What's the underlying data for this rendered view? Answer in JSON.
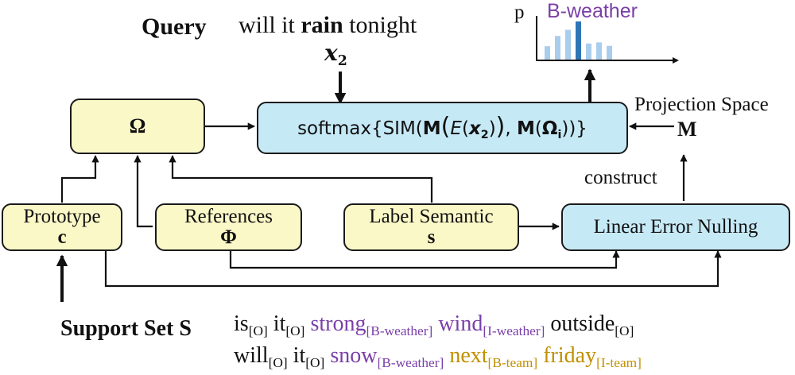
{
  "query": {
    "label": "Query",
    "sentence": {
      "pre": "will it ",
      "bold": "rain",
      "post": " tonight"
    },
    "var": "x",
    "var_sub": "2"
  },
  "chart": {
    "axis_label": "p",
    "title": "B-weather",
    "title_color": "#7b3fa8",
    "bar_color": "#a9cdec",
    "highlight_color": "#2e75b6",
    "bars": [
      0.35,
      0.62,
      0.78,
      1.0,
      0.42,
      0.45,
      0.36
    ],
    "highlight_index": 3
  },
  "omega_box": {
    "symbol": "Ω"
  },
  "softmax_box": {
    "prefix": "softmax{SIM(",
    "M": "M",
    "E": "E",
    "x": "x",
    "x_sub": "2",
    "Omega": "Ω",
    "omega_sub": "i",
    "close": "))}"
  },
  "projection": {
    "label": "Projection Space",
    "symbol": "M"
  },
  "construct_label": "construct",
  "prototype_box": {
    "label": "Prototype",
    "symbol": "c"
  },
  "references_box": {
    "label": "References",
    "symbol": "Φ"
  },
  "label_semantic_box": {
    "label": "Label Semantic",
    "symbol": "s"
  },
  "len_box": {
    "label": "Linear Error Nulling"
  },
  "support_set": {
    "label": "Support Set S",
    "line1": [
      {
        "word": "is",
        "tag": "[O]",
        "color": "#111111"
      },
      {
        "word": "it",
        "tag": "[O]",
        "color": "#111111"
      },
      {
        "word": "strong",
        "tag": "[B-weather]",
        "color": "#7b3fa8"
      },
      {
        "word": "wind",
        "tag": "[I-weather]",
        "color": "#7b3fa8"
      },
      {
        "word": "outside",
        "tag": "[O]",
        "color": "#111111"
      }
    ],
    "line2": [
      {
        "word": "will",
        "tag": "[O]",
        "color": "#111111"
      },
      {
        "word": "it",
        "tag": "[O]",
        "color": "#111111"
      },
      {
        "word": "snow",
        "tag": "[B-weather]",
        "color": "#7b3fa8"
      },
      {
        "word": "next",
        "tag": "[B-team]",
        "color": "#c09000"
      },
      {
        "word": "friday",
        "tag": "[I-team]",
        "color": "#c09000"
      }
    ]
  }
}
